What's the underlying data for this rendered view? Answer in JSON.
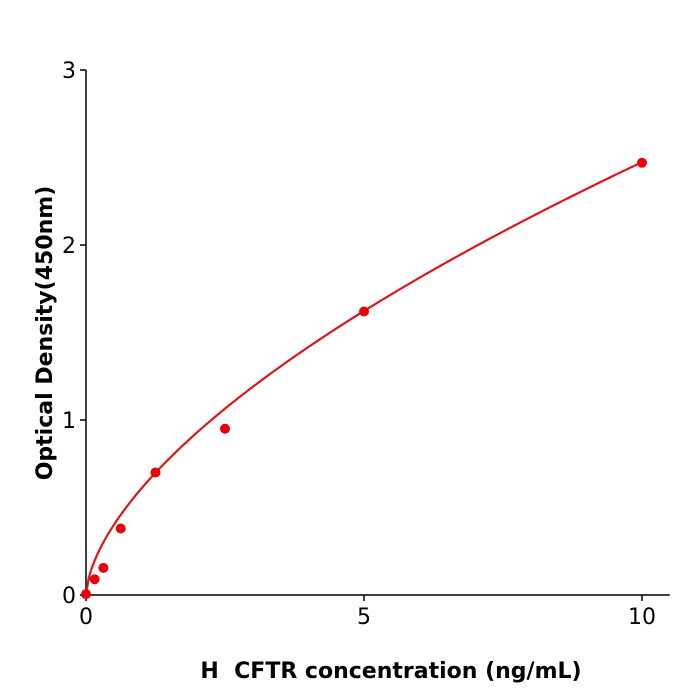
{
  "chart_data": {
    "type": "scatter",
    "title": "",
    "xlabel": "H  CFTR concentration (ng/mL)",
    "ylabel": "Optical Density(450nm)",
    "xlim": [
      0,
      10.5
    ],
    "ylim": [
      0,
      3
    ],
    "xticks": [
      0,
      5,
      10
    ],
    "yticks": [
      0,
      1,
      2,
      3
    ],
    "xtick_labels": [
      "0",
      "5",
      "10"
    ],
    "ytick_labels": [
      "0",
      "1",
      "2",
      "3"
    ],
    "grid": false,
    "points": [
      {
        "x": 0,
        "y": 0.005
      },
      {
        "x": 0.156,
        "y": 0.09
      },
      {
        "x": 0.3125,
        "y": 0.155
      },
      {
        "x": 0.625,
        "y": 0.38
      },
      {
        "x": 1.25,
        "y": 0.7
      },
      {
        "x": 2.5,
        "y": 0.95
      },
      {
        "x": 5,
        "y": 1.62
      },
      {
        "x": 10,
        "y": 2.47
      }
    ],
    "fit_line": true,
    "colors": {
      "points": "#e8000b",
      "line": "#d7191c",
      "axes": "#000000"
    }
  }
}
